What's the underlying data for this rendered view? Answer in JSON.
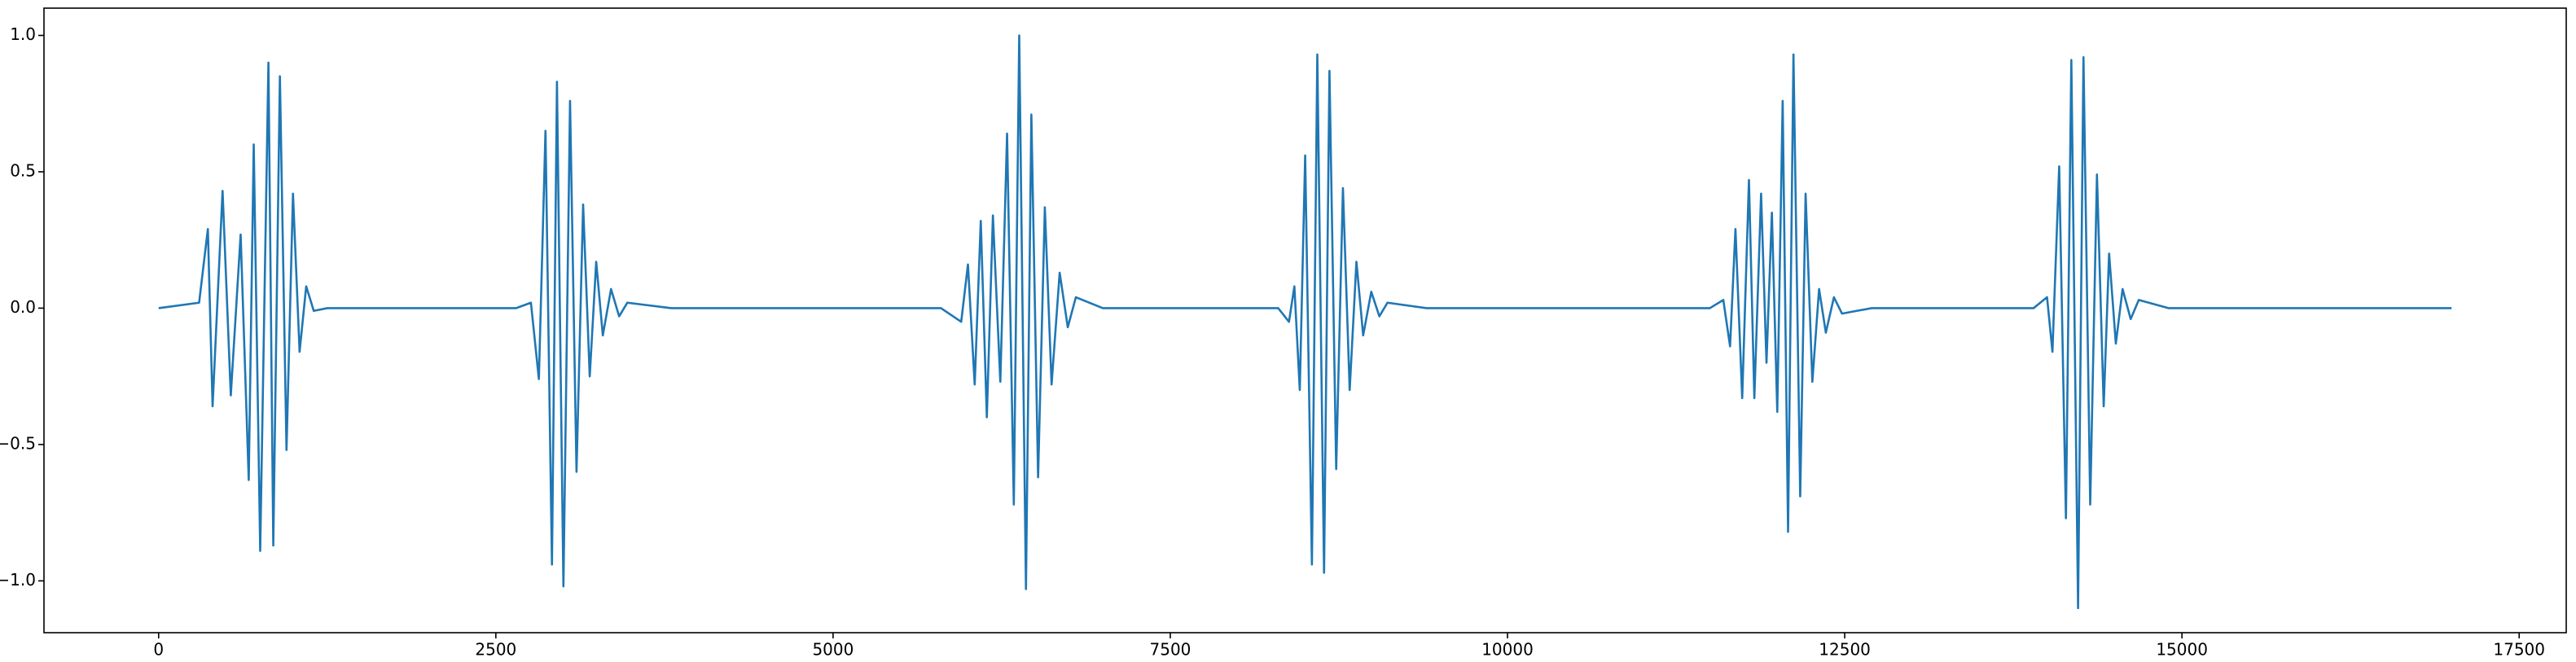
{
  "chart_data": {
    "type": "line",
    "x": [
      0,
      300,
      365,
      400,
      474,
      535,
      608,
      668,
      705,
      753,
      814,
      850,
      899,
      948,
      996,
      1045,
      1094,
      1150,
      1250,
      2650,
      2760,
      2819,
      2868,
      2916,
      2953,
      3001,
      3050,
      3098,
      3147,
      3196,
      3244,
      3293,
      3354,
      3414,
      3475,
      3800,
      5800,
      5950,
      6000,
      6050,
      6095,
      6140,
      6185,
      6240,
      6290,
      6340,
      6380,
      6430,
      6470,
      6520,
      6570,
      6620,
      6680,
      6740,
      6800,
      7000,
      8300,
      8380,
      8420,
      8460,
      8500,
      8550,
      8590,
      8640,
      8680,
      8730,
      8780,
      8830,
      8880,
      8930,
      8990,
      9050,
      9110,
      9400,
      11500,
      11600,
      11650,
      11690,
      11740,
      11790,
      11830,
      11880,
      11920,
      11960,
      12000,
      12040,
      12080,
      12120,
      12170,
      12210,
      12260,
      12310,
      12360,
      12420,
      12480,
      12700,
      13900,
      14000,
      14040,
      14090,
      14140,
      14180,
      14230,
      14270,
      14320,
      14370,
      14420,
      14460,
      14510,
      14560,
      14620,
      14680,
      14900,
      16999
    ],
    "series": [
      {
        "color": "#1f77b4",
        "values": [
          0,
          0.02,
          0.29,
          -0.36,
          0.43,
          -0.32,
          0.27,
          -0.63,
          0.6,
          -0.89,
          0.9,
          -0.87,
          0.85,
          -0.52,
          0.42,
          -0.16,
          0.08,
          -0.01,
          0,
          0,
          0.02,
          -0.26,
          0.65,
          -0.94,
          0.83,
          -1.02,
          0.76,
          -0.6,
          0.38,
          -0.25,
          0.17,
          -0.1,
          0.07,
          -0.03,
          0.02,
          0,
          0,
          -0.05,
          0.16,
          -0.28,
          0.32,
          -0.4,
          0.34,
          -0.27,
          0.64,
          -0.72,
          1.0,
          -1.03,
          0.71,
          -0.62,
          0.37,
          -0.28,
          0.13,
          -0.07,
          0.04,
          0,
          0,
          -0.05,
          0.08,
          -0.3,
          0.56,
          -0.94,
          0.93,
          -0.97,
          0.87,
          -0.59,
          0.44,
          -0.3,
          0.17,
          -0.1,
          0.06,
          -0.03,
          0.02,
          0,
          0,
          0.03,
          -0.14,
          0.29,
          -0.33,
          0.47,
          -0.33,
          0.42,
          -0.2,
          0.35,
          -0.38,
          0.76,
          -0.82,
          0.93,
          -0.69,
          0.42,
          -0.27,
          0.07,
          -0.09,
          0.04,
          -0.02,
          0,
          0,
          0.04,
          -0.16,
          0.52,
          -0.77,
          0.91,
          -1.1,
          0.92,
          -0.72,
          0.49,
          -0.36,
          0.2,
          -0.13,
          0.07,
          -0.04,
          0.03,
          0,
          0
        ]
      }
    ],
    "xlim": [
      -850,
      17849
    ],
    "ylim": [
      -1.19,
      1.1
    ],
    "xticks": [
      0,
      2500,
      5000,
      7500,
      10000,
      12500,
      15000,
      17500
    ],
    "yticks": [
      {
        "value": -1,
        "label": "−1.0"
      },
      {
        "value": -0.5,
        "label": "−0.5"
      },
      {
        "value": 0,
        "label": "0.0"
      },
      {
        "value": 0.5,
        "label": "0.5"
      },
      {
        "value": 1,
        "label": "1.0"
      }
    ]
  }
}
